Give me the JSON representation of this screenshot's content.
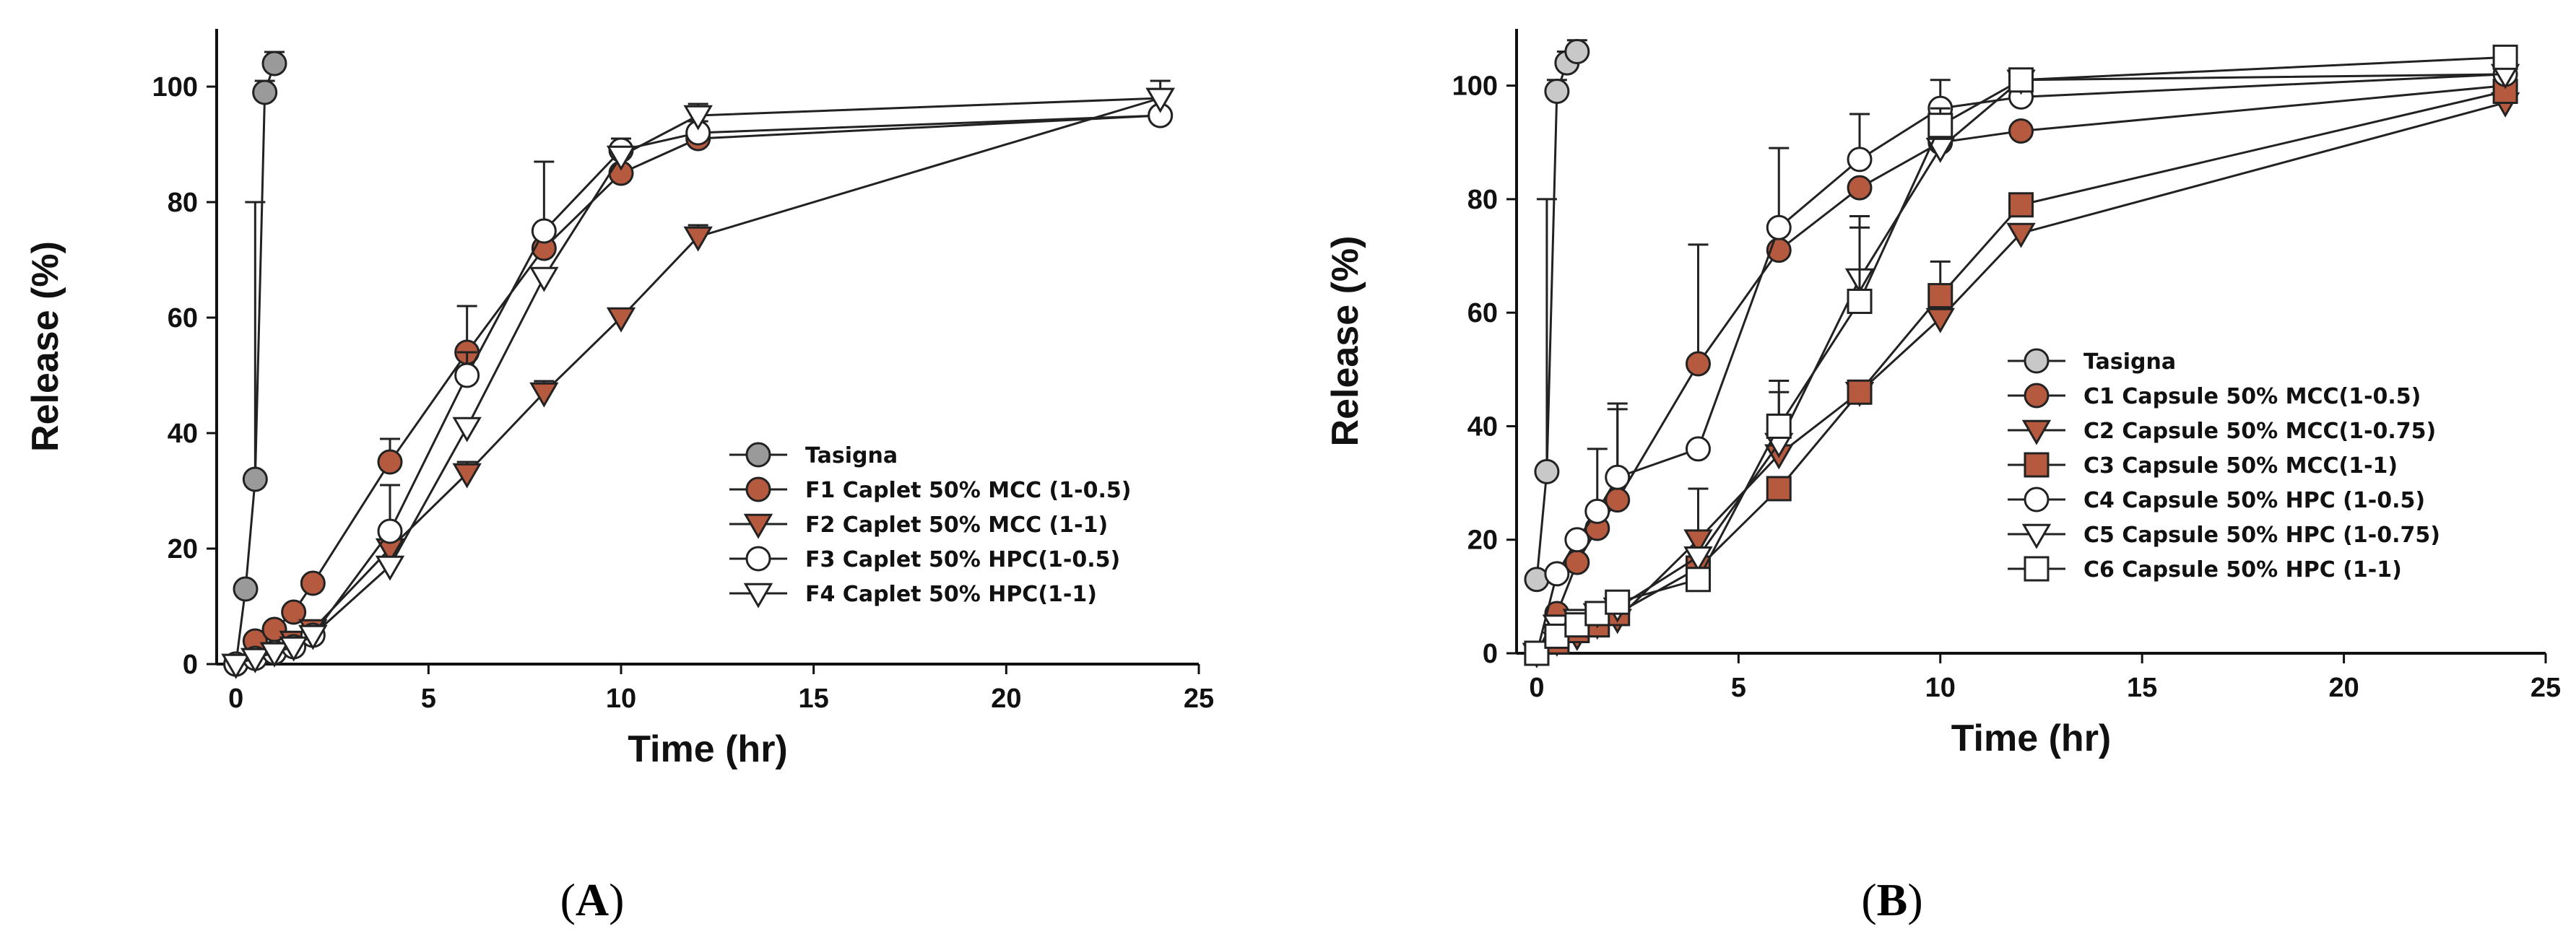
{
  "colors": {
    "tasigna_A": "#9a9a9a",
    "tasigna_B": "#c8c8c8",
    "brown": "#b55a3f",
    "open": "#ffffff",
    "line": "#222222"
  },
  "chart_data": [
    {
      "type": "scatter",
      "panel": "A",
      "panel_label": "A",
      "xlabel": "Time (hr)",
      "ylabel": "Release (%)",
      "xlim": [
        -0.5,
        25
      ],
      "ylim": [
        0,
        110
      ],
      "xticks": [
        0,
        5,
        10,
        15,
        20,
        25
      ],
      "yticks": [
        0,
        20,
        40,
        60,
        80,
        100
      ],
      "legend_position": "lower-right",
      "series": [
        {
          "name": "Tasigna",
          "marker": "circle",
          "color": "#9a9a9a",
          "x": [
            0,
            0.25,
            0.5,
            0.75,
            1
          ],
          "y": [
            0,
            13,
            32,
            99,
            104
          ],
          "err": [
            0,
            0,
            48,
            2,
            2
          ]
        },
        {
          "name": "F1 Caplet 50% MCC (1-0.5)",
          "marker": "circle",
          "color": "#b55a3f",
          "x": [
            0,
            0.5,
            1,
            1.5,
            2,
            4,
            6,
            8,
            10,
            12,
            24
          ],
          "y": [
            0,
            4,
            6,
            9,
            14,
            35,
            54,
            72,
            85,
            91,
            95
          ],
          "err": [
            0,
            0,
            0,
            0,
            0,
            4,
            8,
            0,
            0,
            0,
            0
          ]
        },
        {
          "name": "F2 Caplet 50% MCC (1-1)",
          "marker": "triangle-down",
          "color": "#b55a3f",
          "x": [
            0,
            0.5,
            1,
            1.5,
            2,
            4,
            6,
            8,
            10,
            12,
            24
          ],
          "y": [
            0,
            1,
            2,
            4,
            6,
            20,
            33,
            47,
            60,
            74,
            98
          ],
          "err": [
            0,
            0,
            0,
            0,
            0,
            0,
            2,
            2,
            0,
            2,
            0
          ]
        },
        {
          "name": "F3 Caplet 50% HPC(1-0.5)",
          "marker": "circle-open",
          "color": "#ffffff",
          "x": [
            0,
            0.5,
            1,
            1.5,
            2,
            4,
            6,
            8,
            10,
            12,
            24
          ],
          "y": [
            0,
            1,
            2,
            3,
            5,
            23,
            50,
            75,
            89,
            92,
            95
          ],
          "err": [
            0,
            0,
            0,
            0,
            0,
            8,
            4,
            12,
            2,
            2,
            0
          ]
        },
        {
          "name": "F4 Caplet 50% HPC(1-1)",
          "marker": "triangle-open",
          "color": "#ffffff",
          "x": [
            0,
            0.5,
            1,
            1.5,
            2,
            4,
            6,
            8,
            10,
            12,
            24
          ],
          "y": [
            0,
            1,
            2,
            3,
            5,
            17,
            41,
            67,
            88,
            95,
            98
          ],
          "err": [
            0,
            0,
            0,
            0,
            0,
            0,
            0,
            0,
            0,
            2,
            3
          ]
        }
      ]
    },
    {
      "type": "scatter",
      "panel": "B",
      "panel_label": "B",
      "xlabel": "Time (hr)",
      "ylabel": "Release (%)",
      "xlim": [
        -0.5,
        25
      ],
      "ylim": [
        0,
        110
      ],
      "xticks": [
        0,
        5,
        10,
        15,
        20,
        25
      ],
      "yticks": [
        0,
        20,
        40,
        60,
        80,
        100
      ],
      "legend_position": "lower-right",
      "series": [
        {
          "name": "Tasigna",
          "marker": "circle",
          "color": "#c8c8c8",
          "x": [
            0,
            0.25,
            0.5,
            0.75,
            1
          ],
          "y": [
            13,
            32,
            99,
            104,
            106
          ],
          "err": [
            0,
            48,
            2,
            2,
            2
          ]
        },
        {
          "name": "C1 Capsule 50% MCC(1-0.5)",
          "marker": "circle",
          "color": "#b55a3f",
          "x": [
            0,
            0.5,
            1,
            1.5,
            2,
            4,
            6,
            8,
            10,
            12,
            24
          ],
          "y": [
            0,
            7,
            16,
            22,
            27,
            51,
            71,
            82,
            90,
            92,
            100
          ],
          "err": [
            0,
            0,
            0,
            0,
            16,
            21,
            0,
            0,
            0,
            0,
            0
          ]
        },
        {
          "name": "C2 Capsule 50% MCC(1-0.75)",
          "marker": "triangle-down",
          "color": "#b55a3f",
          "x": [
            0,
            0.5,
            1,
            1.5,
            2,
            4,
            6,
            8,
            10,
            12,
            24
          ],
          "y": [
            0,
            2,
            3,
            5,
            6,
            20,
            35,
            46,
            59,
            74,
            97
          ],
          "err": [
            0,
            0,
            0,
            0,
            0,
            9,
            0,
            0,
            0,
            0,
            0
          ]
        },
        {
          "name": "C3 Capsule 50% MCC(1-1)",
          "marker": "square",
          "color": "#b55a3f",
          "x": [
            0,
            0.5,
            1,
            1.5,
            2,
            4,
            6,
            8,
            10,
            12,
            24
          ],
          "y": [
            0,
            2,
            4,
            5,
            7,
            15,
            29,
            46,
            63,
            79,
            99
          ],
          "err": [
            0,
            0,
            0,
            0,
            0,
            0,
            0,
            0,
            6,
            2,
            0
          ]
        },
        {
          "name": "C4 Capsule 50% HPC (1-0.5)",
          "marker": "circle-open",
          "color": "#ffffff",
          "x": [
            0,
            0.5,
            1,
            1.5,
            2,
            4,
            6,
            8,
            10,
            12,
            24
          ],
          "y": [
            0,
            14,
            20,
            25,
            31,
            36,
            75,
            87,
            96,
            98,
            102
          ],
          "err": [
            0,
            0,
            0,
            11,
            13,
            0,
            14,
            8,
            5,
            3,
            0
          ]
        },
        {
          "name": "C5 Capsule 50% HPC (1-0.75)",
          "marker": "triangle-open",
          "color": "#ffffff",
          "x": [
            0,
            0.5,
            1,
            1.5,
            2,
            4,
            6,
            8,
            10,
            12,
            24
          ],
          "y": [
            0,
            5,
            6,
            7,
            8,
            17,
            37,
            66,
            89,
            101,
            102
          ],
          "err": [
            0,
            0,
            0,
            0,
            0,
            0,
            11,
            9,
            0,
            0,
            0
          ]
        },
        {
          "name": "C6 Capsule 50% HPC (1-1)",
          "marker": "square-open",
          "color": "#ffffff",
          "x": [
            0,
            0.5,
            1,
            1.5,
            2,
            4,
            6,
            8,
            10,
            12,
            24
          ],
          "y": [
            0,
            3,
            5,
            7,
            9,
            13,
            40,
            62,
            93,
            101,
            105
          ],
          "err": [
            0,
            0,
            0,
            0,
            0,
            0,
            6,
            15,
            3,
            0,
            0
          ]
        }
      ]
    }
  ]
}
